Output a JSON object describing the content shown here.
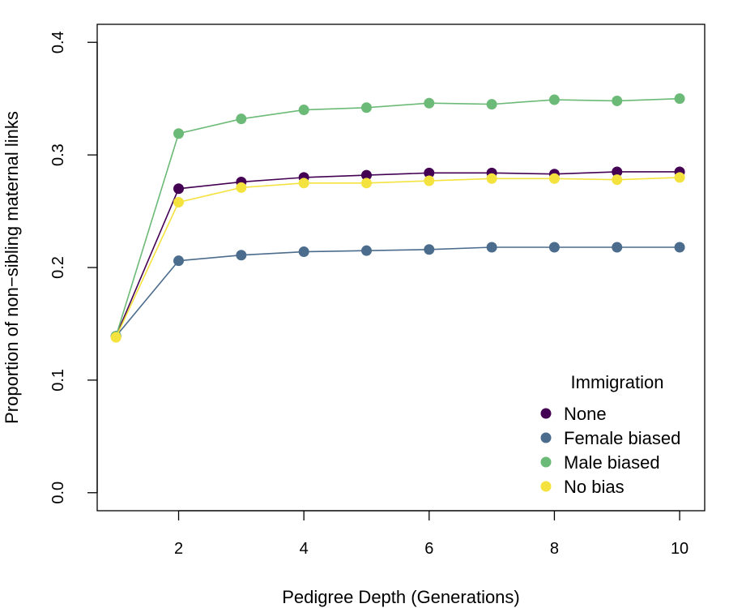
{
  "chart_data": {
    "type": "line",
    "xlabel": "Pedigree Depth (Generations)",
    "ylabel": "Proportion of non−sibling maternal links",
    "xlim": [
      0.7,
      10.4
    ],
    "ylim": [
      -0.016,
      0.416
    ],
    "xticks": [
      2,
      4,
      6,
      8,
      10
    ],
    "yticks": [
      0.0,
      0.1,
      0.2,
      0.3,
      0.4
    ],
    "ytick_labels": [
      "0.0",
      "0.1",
      "0.2",
      "0.3",
      "0.4"
    ],
    "grid": false,
    "legend": {
      "title": "Immigration",
      "position": "bottom-right"
    },
    "x": [
      1,
      2,
      3,
      4,
      5,
      6,
      7,
      8,
      9,
      10
    ],
    "series": [
      {
        "name": "None",
        "color": "#440154",
        "values": [
          0.139,
          0.27,
          0.276,
          0.28,
          0.282,
          0.284,
          0.284,
          0.283,
          0.285,
          0.285
        ]
      },
      {
        "name": "Female biased",
        "color": "#4b6c8c",
        "values": [
          0.139,
          0.206,
          0.211,
          0.214,
          0.215,
          0.216,
          0.218,
          0.218,
          0.218,
          0.218
        ]
      },
      {
        "name": "Male biased",
        "color": "#6cba77",
        "values": [
          0.139,
          0.319,
          0.332,
          0.34,
          0.342,
          0.346,
          0.345,
          0.349,
          0.348,
          0.35
        ]
      },
      {
        "name": "No bias",
        "color": "#f4e23f",
        "values": [
          0.138,
          0.258,
          0.271,
          0.275,
          0.275,
          0.277,
          0.279,
          0.279,
          0.278,
          0.28
        ]
      }
    ]
  }
}
